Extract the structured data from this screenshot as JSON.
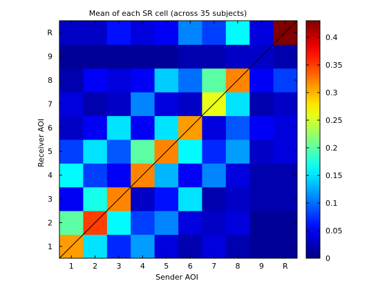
{
  "chart_data": {
    "type": "heatmap",
    "title": "Mean of each SR cell (across 35 subjects)",
    "xlabel": "Sender AOI",
    "ylabel": "Receiver AOI",
    "x_categories": [
      "1",
      "2",
      "3",
      "4",
      "5",
      "6",
      "7",
      "8",
      "9",
      "R"
    ],
    "y_categories": [
      "1",
      "2",
      "3",
      "4",
      "5",
      "6",
      "7",
      "8",
      "9",
      "R"
    ],
    "colormap": "jet",
    "clim": [
      0,
      0.43
    ],
    "colorbar_ticks": [
      0,
      0.05,
      0.1,
      0.15,
      0.2,
      0.25,
      0.3,
      0.35,
      0.4
    ],
    "colorbar_tick_labels": [
      "0",
      "0.05",
      "0.1",
      "0.15",
      "0.2",
      "0.25",
      "0.3",
      "0.35",
      "0.4"
    ],
    "diagonal_line": true,
    "values": [
      [
        0.31,
        0.15,
        0.07,
        0.12,
        0.04,
        0.02,
        0.04,
        0.02,
        0.01,
        0.01
      ],
      [
        0.2,
        0.35,
        0.16,
        0.08,
        0.11,
        0.04,
        0.03,
        0.04,
        0.01,
        0.01
      ],
      [
        0.05,
        0.17,
        0.32,
        0.03,
        0.06,
        0.15,
        0.02,
        0.03,
        0.02,
        0.02
      ],
      [
        0.16,
        0.08,
        0.05,
        0.32,
        0.13,
        0.05,
        0.11,
        0.04,
        0.02,
        0.02
      ],
      [
        0.08,
        0.15,
        0.09,
        0.2,
        0.32,
        0.16,
        0.07,
        0.12,
        0.03,
        0.04
      ],
      [
        0.03,
        0.05,
        0.15,
        0.05,
        0.15,
        0.31,
        0.04,
        0.09,
        0.05,
        0.04
      ],
      [
        0.04,
        0.02,
        0.03,
        0.11,
        0.04,
        0.03,
        0.26,
        0.15,
        0.02,
        0.03
      ],
      [
        0.02,
        0.05,
        0.04,
        0.05,
        0.14,
        0.1,
        0.2,
        0.32,
        0.05,
        0.08
      ],
      [
        0.01,
        0.01,
        0.01,
        0.01,
        0.01,
        0.02,
        0.02,
        0.03,
        0.03,
        0.02
      ],
      [
        0.03,
        0.03,
        0.06,
        0.04,
        0.05,
        0.11,
        0.08,
        0.16,
        0.04,
        0.43
      ]
    ]
  }
}
